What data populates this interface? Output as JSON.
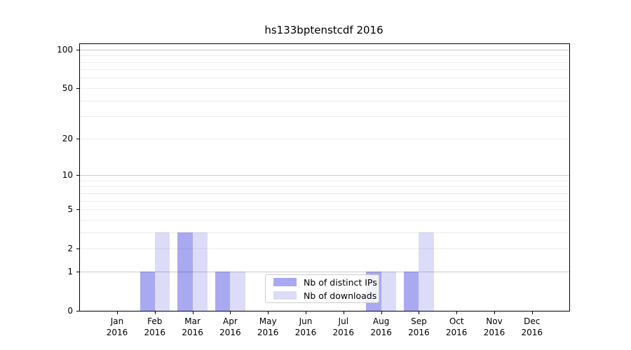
{
  "chart_data": {
    "type": "bar",
    "title": "hs133bptenstcdf 2016",
    "categories": [
      "Jan",
      "Feb",
      "Mar",
      "Apr",
      "May",
      "Jun",
      "Jul",
      "Aug",
      "Sep",
      "Oct",
      "Nov",
      "Dec"
    ],
    "x_tick_second_line": "2016",
    "series": [
      {
        "name": "Nb of distinct IPs",
        "color": "#a9a9f2",
        "values": [
          0,
          1,
          3,
          1,
          0,
          0,
          0,
          1,
          1,
          0,
          0,
          0
        ]
      },
      {
        "name": "Nb of downloads",
        "color": "#dcdcf8",
        "values": [
          0,
          3,
          3,
          1,
          0,
          0,
          0,
          1,
          3,
          0,
          0,
          0
        ]
      }
    ],
    "yscale": "log1p",
    "ylim": [
      0,
      110
    ],
    "y_ticks": [
      0,
      1,
      2,
      5,
      10,
      20,
      50,
      100
    ],
    "y_major_gridlines": [
      1,
      10,
      100
    ],
    "y_minor_gridlines": [
      2,
      3,
      4,
      5,
      6,
      7,
      8,
      9,
      20,
      30,
      40,
      50,
      60,
      70,
      80,
      90
    ],
    "grid": "on",
    "legend_position": "lower center",
    "xlabel": "",
    "ylabel": ""
  },
  "colors": {
    "distinct_ips_bar": "#a9a9f2",
    "downloads_bar": "#dcdcf8",
    "axis_spine": "#000000",
    "major_grid": "#cccccc",
    "minor_grid": "#ececec",
    "legend_border": "#cccccc",
    "background": "#ffffff"
  }
}
